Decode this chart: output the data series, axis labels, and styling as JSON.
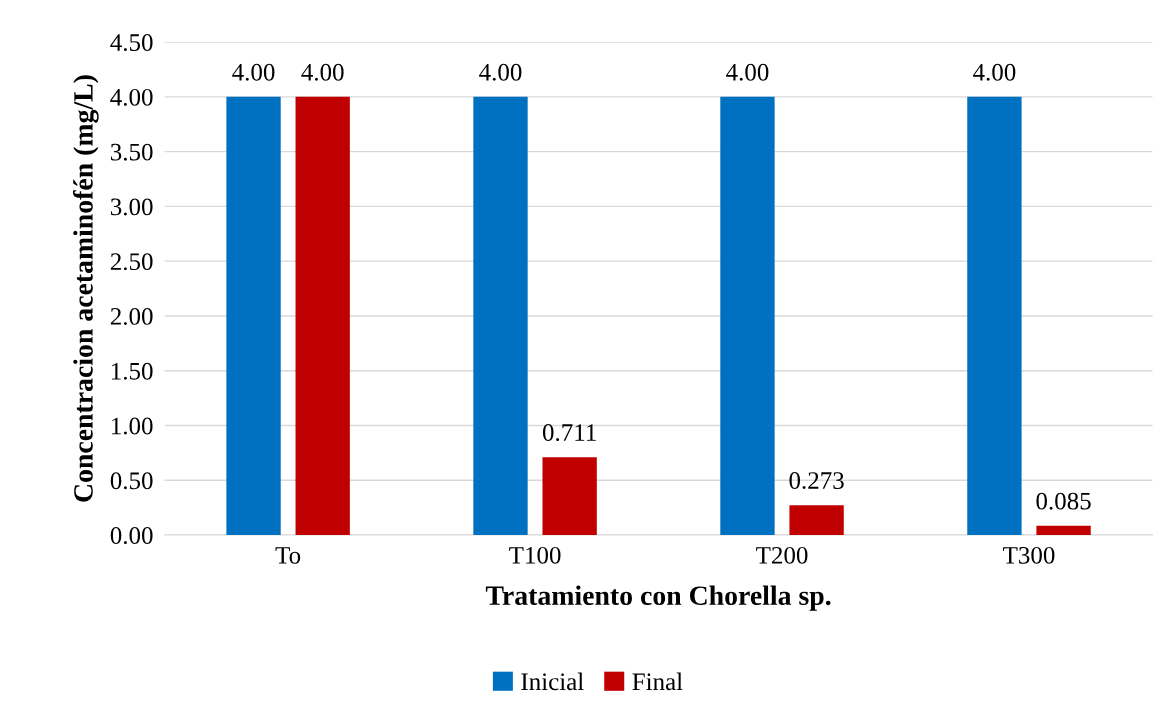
{
  "chart_data": {
    "type": "bar",
    "xlabel": "Tratamiento con Chorella sp.",
    "ylabel": "Concentracion acetaminofén (mg/L)",
    "categories": [
      "To",
      "T100",
      "T200",
      "T300"
    ],
    "series": [
      {
        "name": "Inicial",
        "color": "#0070c0",
        "values": [
          4.0,
          4.0,
          4.0,
          4.0
        ],
        "value_labels": [
          "4.00",
          "4.00",
          "4.00",
          "4.00"
        ]
      },
      {
        "name": "Final",
        "color": "#c00000",
        "values": [
          4.0,
          0.711,
          0.273,
          0.085
        ],
        "value_labels": [
          "4.00",
          "0.711",
          "0.273",
          "0.085"
        ]
      }
    ],
    "ylim": [
      0,
      4.5
    ],
    "yticks": [
      {
        "value": 0,
        "label": "0.00"
      },
      {
        "value": 0.5,
        "label": "0.50"
      },
      {
        "value": 1,
        "label": "1.00"
      },
      {
        "value": 1.5,
        "label": "1.50"
      },
      {
        "value": 2,
        "label": "2.00"
      },
      {
        "value": 2.5,
        "label": "2.50"
      },
      {
        "value": 3,
        "label": "3.00"
      },
      {
        "value": 3.5,
        "label": "3.50"
      },
      {
        "value": 4,
        "label": "4.00"
      },
      {
        "value": 4.5,
        "label": "4.50"
      }
    ],
    "grid": "y",
    "legend": "bottom"
  }
}
